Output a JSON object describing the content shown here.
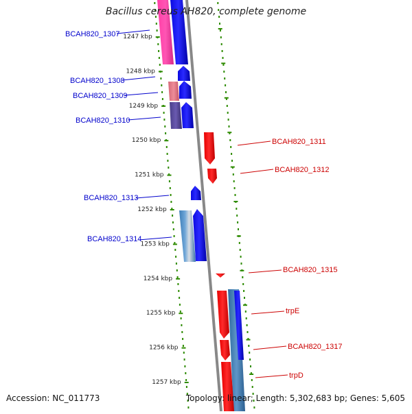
{
  "title": "Bacillus cereus AH820, complete genome",
  "footer": {
    "accession": "Accession: NC_011773",
    "topology": "Topology: linear; Length: 5,302,683 bp; Genes: 5,605"
  },
  "colors": {
    "left_label": "#0000cc",
    "right_label": "#cc0000",
    "tick_dots": "#2e8b00",
    "backbone": "#888888",
    "kbp_text": "#222222"
  },
  "ruler": [
    {
      "label": "1247 kbp"
    },
    {
      "label": "1248 kbp"
    },
    {
      "label": "1249 kbp"
    },
    {
      "label": "1250 kbp"
    },
    {
      "label": "1251 kbp"
    },
    {
      "label": "1252 kbp"
    },
    {
      "label": "1253 kbp"
    },
    {
      "label": "1254 kbp"
    },
    {
      "label": "1255 kbp"
    },
    {
      "label": "1256 kbp"
    },
    {
      "label": "1257 kbp"
    }
  ],
  "genes": [
    {
      "label": "BCAH820_1307",
      "side": "left"
    },
    {
      "label": "BCAH820_1308",
      "side": "left"
    },
    {
      "label": "BCAH820_1309",
      "side": "left"
    },
    {
      "label": "BCAH820_1310",
      "side": "left"
    },
    {
      "label": "BCAH820_1311",
      "side": "right"
    },
    {
      "label": "BCAH820_1312",
      "side": "right"
    },
    {
      "label": "BCAH820_1313",
      "side": "left"
    },
    {
      "label": "BCAH820_1314",
      "side": "left"
    },
    {
      "label": "BCAH820_1315",
      "side": "right"
    },
    {
      "label": "trpE",
      "side": "right"
    },
    {
      "label": "BCAH820_1317",
      "side": "right"
    },
    {
      "label": "trpD",
      "side": "right"
    }
  ]
}
